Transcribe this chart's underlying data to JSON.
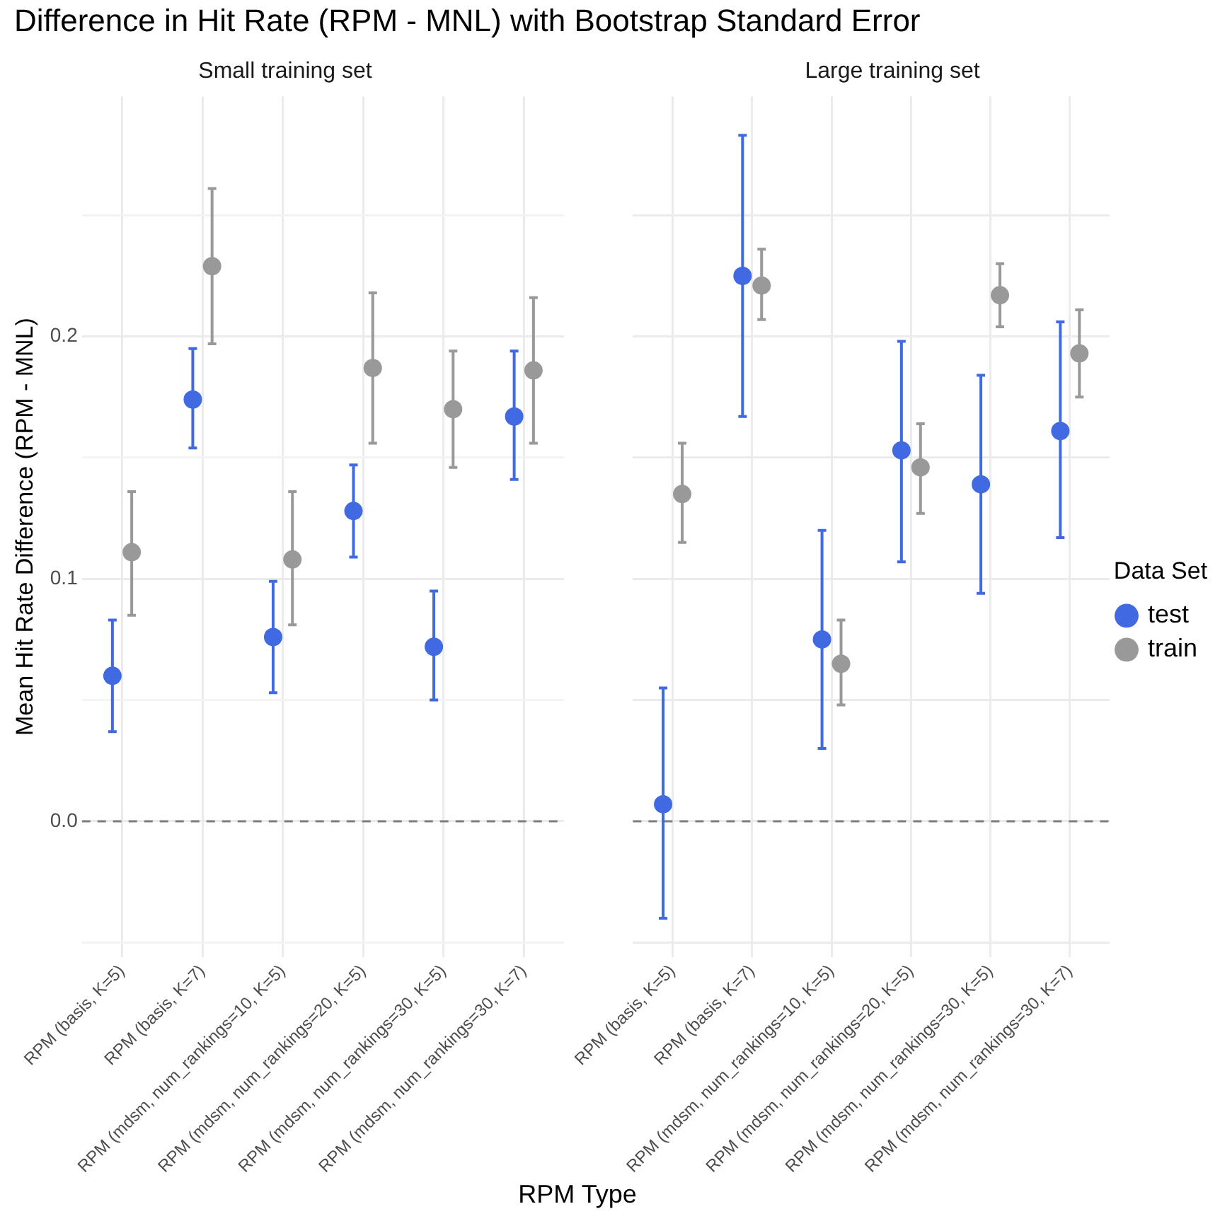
{
  "chart_data": [
    {
      "type": "scatter",
      "title": "Difference in Hit Rate (RPM - MNL) with Bootstrap Standard Error",
      "subtitle": "Small training set",
      "xlabel": "RPM Type",
      "ylabel": "Mean Hit Rate Difference (RPM - MNL)",
      "categories": [
        "RPM (basis, K=5)",
        "RPM (basis, K=7)",
        "RPM (mdsm, num_rankings=10, K=5)",
        "RPM (mdsm, num_rankings=20, K=5)",
        "RPM (mdsm, num_rankings=30, K=5)",
        "RPM (mdsm, num_rankings=30, K=7)"
      ],
      "series": [
        {
          "color": "#4169e1",
          "values": [
            0.06,
            0.174,
            0.076,
            0.128,
            0.072,
            0.167
          ],
          "errors": [
            [
              0.037,
              0.083
            ],
            [
              0.154,
              0.195
            ],
            [
              0.053,
              0.099
            ],
            [
              0.109,
              0.147
            ],
            [
              0.05,
              0.095
            ],
            [
              0.141,
              0.194
            ]
          ]
        },
        {
          "color": "#999999",
          "values": [
            0.111,
            0.229,
            0.108,
            0.187,
            0.17,
            0.186
          ],
          "errors": [
            [
              0.085,
              0.136
            ],
            [
              0.197,
              0.261
            ],
            [
              0.081,
              0.136
            ],
            [
              0.156,
              0.218
            ],
            [
              0.146,
              0.194
            ],
            [
              0.156,
              0.216
            ]
          ]
        }
      ],
      "ylim": [
        -0.056,
        0.299
      ],
      "yticks": [
        {
          "value": -0.05,
          "label": null
        },
        {
          "value": 0,
          "label": "0.0"
        },
        {
          "value": 0.05,
          "label": null
        },
        {
          "value": 0.1,
          "label": "0.1"
        },
        {
          "value": 0.15,
          "label": null
        },
        {
          "value": 0.2,
          "label": "0.2"
        },
        {
          "value": 0.25,
          "label": null
        }
      ],
      "ref_lines": [
        {
          "axis": "y",
          "value": 0,
          "color": "#808080",
          "line_style": "dashed"
        }
      ],
      "grid": true,
      "legend": false,
      "marker": "circle"
    },
    {
      "type": "scatter",
      "subtitle": "Large training set",
      "legend_title": "Data Set",
      "categories": [
        "RPM (basis, K=5)",
        "RPM (basis, K=7)",
        "RPM (mdsm, num_rankings=10, K=5)",
        "RPM (mdsm, num_rankings=20, K=5)",
        "RPM (mdsm, num_rankings=30, K=5)",
        "RPM (mdsm, num_rankings=30, K=7)"
      ],
      "series": [
        {
          "name": "test",
          "color": "#4169e1",
          "values": [
            0.007,
            0.225,
            0.075,
            0.153,
            0.139,
            0.161
          ],
          "errors": [
            [
              -0.04,
              0.055
            ],
            [
              0.167,
              0.283
            ],
            [
              0.03,
              0.12
            ],
            [
              0.107,
              0.198
            ],
            [
              0.094,
              0.184
            ],
            [
              0.117,
              0.206
            ]
          ]
        },
        {
          "name": "train",
          "color": "#999999",
          "values": [
            0.135,
            0.221,
            0.065,
            0.146,
            0.217,
            0.193
          ],
          "errors": [
            [
              0.115,
              0.156
            ],
            [
              0.207,
              0.236
            ],
            [
              0.048,
              0.083
            ],
            [
              0.127,
              0.164
            ],
            [
              0.204,
              0.23
            ],
            [
              0.175,
              0.211
            ]
          ]
        }
      ],
      "ylim": [
        -0.056,
        0.299
      ],
      "yticks": [
        -0.05,
        0,
        0.05,
        0.1,
        0.15,
        0.2,
        0.25
      ],
      "ref_lines": [
        {
          "axis": "y",
          "value": 0,
          "color": "#808080",
          "line_style": "dashed"
        }
      ],
      "grid": true,
      "legend": "right",
      "marker": "circle",
      "tick_labels": "x"
    }
  ]
}
